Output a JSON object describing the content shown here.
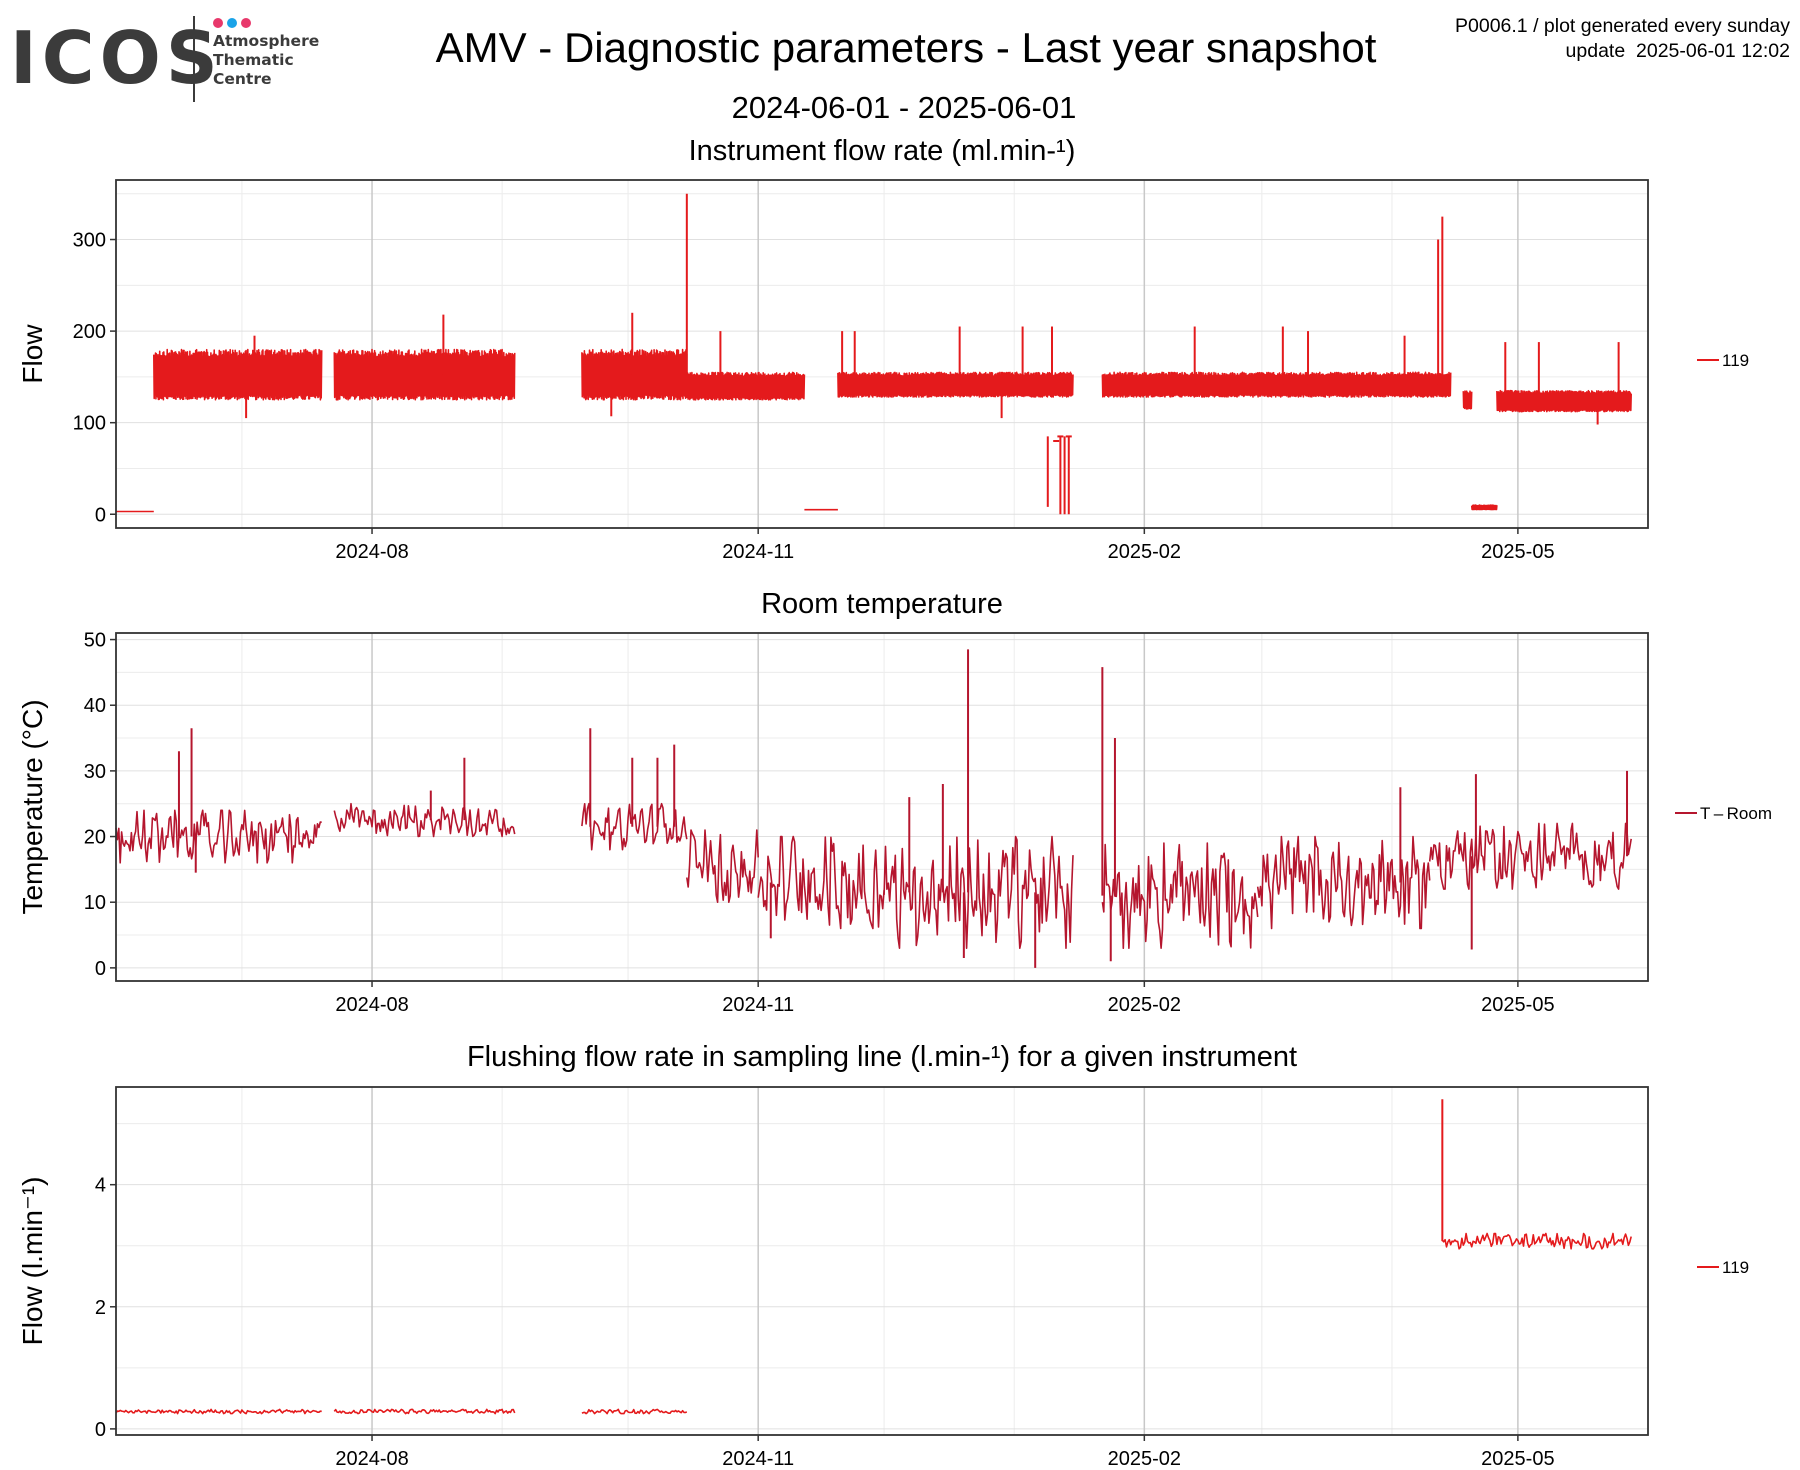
{
  "header": {
    "logo_text": "ICOS",
    "logo_subtitle": [
      "Atmosphere",
      "Thematic",
      "Centre"
    ],
    "logo_dot_colors": [
      "#e8386b",
      "#1aa3e8",
      "#e8386b"
    ],
    "title": "AMV - Diagnostic parameters - Last year snapshot",
    "date_range": "2024-06-01 - 2025-06-01",
    "meta_line1": "P0006.1 / plot generated every sunday",
    "meta_line2": "update  2025-06-01 12:02"
  },
  "colors": {
    "flow_red": "#e41a1c",
    "temp_red": "#b5162e",
    "major_grid": "#c8c8c8",
    "minor_grid": "#ececec"
  },
  "chart_data": [
    {
      "type": "line",
      "title": "Instrument flow rate (ml.min-¹)",
      "xlabel": "",
      "ylabel": "Flow",
      "xlim": [
        "2024-06-01",
        "2025-06-01"
      ],
      "ylim": [
        -15,
        365
      ],
      "x_ticks": [
        "2024-08",
        "2024-11",
        "2025-02",
        "2025-05"
      ],
      "y_ticks": [
        0,
        100,
        200,
        300
      ],
      "legend": {
        "position": "right",
        "entries": [
          "119"
        ]
      },
      "series": [
        {
          "name": "119",
          "color": "#e41a1c",
          "segments": [
            {
              "start": "2024-06-01",
              "end": "2024-06-10",
              "base": 3,
              "top": 3
            },
            {
              "start": "2024-06-10",
              "end": "2024-07-20",
              "base": 125,
              "top": 180
            },
            {
              "start": "2024-07-23",
              "end": "2024-09-04",
              "base": 125,
              "top": 180
            },
            {
              "start": "2024-09-20",
              "end": "2024-10-15",
              "base": 125,
              "top": 180
            },
            {
              "start": "2024-10-15",
              "end": "2024-11-12",
              "base": 125,
              "top": 155
            },
            {
              "start": "2024-11-12",
              "end": "2024-11-20",
              "base": 5,
              "top": 5
            },
            {
              "start": "2024-11-20",
              "end": "2025-01-15",
              "base": 128,
              "top": 155
            },
            {
              "start": "2025-01-22",
              "end": "2025-04-15",
              "base": 128,
              "top": 155
            },
            {
              "start": "2025-04-18",
              "end": "2025-04-20",
              "base": 115,
              "top": 135
            },
            {
              "start": "2025-04-20",
              "end": "2025-04-26",
              "base": 5,
              "top": 10
            },
            {
              "start": "2025-04-26",
              "end": "2025-05-28",
              "base": 112,
              "top": 135
            }
          ],
          "spikes": [
            [
              "2024-07-04",
              195
            ],
            [
              "2024-08-18",
              218
            ],
            [
              "2024-10-02",
              220
            ],
            [
              "2024-10-15",
              350
            ],
            [
              "2024-10-23",
              200
            ],
            [
              "2024-11-21",
              200
            ],
            [
              "2024-11-24",
              200
            ],
            [
              "2024-12-19",
              205
            ],
            [
              "2025-01-03",
              205
            ],
            [
              "2025-01-10",
              205
            ],
            [
              "2025-02-13",
              205
            ],
            [
              "2025-03-06",
              205
            ],
            [
              "2025-03-12",
              200
            ],
            [
              "2025-04-04",
              195
            ],
            [
              "2025-04-12",
              300
            ],
            [
              "2025-04-13",
              325
            ],
            [
              "2025-04-28",
              188
            ],
            [
              "2025-05-06",
              188
            ],
            [
              "2025-05-25",
              188
            ]
          ],
          "dips": [
            [
              "2024-07-02",
              105
            ],
            [
              "2024-09-27",
              107
            ],
            [
              "2024-12-29",
              105
            ],
            [
              "2025-05-20",
              98
            ]
          ],
          "drops": [
            [
              "2025-01-09",
              8
            ],
            [
              "2025-01-12",
              0
            ],
            [
              "2025-01-13",
              0
            ],
            [
              "2025-01-14",
              0
            ]
          ],
          "notes": [
            {
              "x": "2025-01-11",
              "y": 80
            },
            {
              "x": "2025-01-12",
              "y": 85
            },
            {
              "x": "2025-01-14",
              "y": 85
            }
          ]
        }
      ]
    },
    {
      "type": "line",
      "title": "Room temperature",
      "xlabel": "",
      "ylabel": "Temperature (°C)",
      "xlim": [
        "2024-06-01",
        "2025-06-01"
      ],
      "ylim": [
        -2,
        51
      ],
      "x_ticks": [
        "2024-08",
        "2024-11",
        "2025-02",
        "2025-05"
      ],
      "y_ticks": [
        0,
        10,
        20,
        30,
        40,
        50
      ],
      "legend": {
        "position": "right",
        "entries": [
          "T – Room"
        ]
      },
      "series": [
        {
          "name": "T – Room",
          "color": "#b5162e",
          "segments": [
            {
              "start": "2024-06-01",
              "end": "2024-07-20",
              "low": 16,
              "high": 24
            },
            {
              "start": "2024-07-23",
              "end": "2024-09-04",
              "low": 20,
              "high": 25
            },
            {
              "start": "2024-09-20",
              "end": "2024-10-15",
              "low": 18,
              "high": 25
            },
            {
              "start": "2024-10-15",
              "end": "2024-11-01",
              "low": 10,
              "high": 21
            },
            {
              "start": "2024-11-01",
              "end": "2024-12-01",
              "low": 6,
              "high": 20
            },
            {
              "start": "2024-12-01",
              "end": "2025-01-15",
              "low": 3,
              "high": 20
            },
            {
              "start": "2025-01-22",
              "end": "2025-02-28",
              "low": 3,
              "high": 19
            },
            {
              "start": "2025-02-28",
              "end": "2025-04-10",
              "low": 6,
              "high": 20
            },
            {
              "start": "2025-04-10",
              "end": "2025-05-28",
              "low": 12,
              "high": 22
            }
          ],
          "spikes": [
            [
              "2024-06-16",
              33
            ],
            [
              "2024-06-19",
              36.5
            ],
            [
              "2024-08-15",
              27
            ],
            [
              "2024-08-23",
              32
            ],
            [
              "2024-09-22",
              36.5
            ],
            [
              "2024-10-02",
              32
            ],
            [
              "2024-10-08",
              32
            ],
            [
              "2024-10-12",
              34
            ],
            [
              "2024-12-07",
              26
            ],
            [
              "2024-12-15",
              28
            ],
            [
              "2024-12-21",
              48.5
            ],
            [
              "2025-01-22",
              45.8
            ],
            [
              "2025-01-25",
              35
            ],
            [
              "2025-04-03",
              27.5
            ],
            [
              "2025-04-21",
              29.5
            ],
            [
              "2025-05-27",
              30
            ]
          ],
          "dips": [
            [
              "2024-06-20",
              14.5
            ],
            [
              "2024-11-04",
              4.5
            ],
            [
              "2024-12-20",
              1.5
            ],
            [
              "2025-01-06",
              0
            ],
            [
              "2025-01-24",
              1
            ],
            [
              "2025-04-20",
              2.8
            ]
          ]
        }
      ]
    },
    {
      "type": "line",
      "title": "Flushing flow rate in sampling line (l.min-¹) for a given instrument",
      "xlabel": "",
      "ylabel": "Flow (l.min⁻¹)",
      "xlim": [
        "2024-06-01",
        "2025-06-01"
      ],
      "ylim": [
        -0.1,
        5.6
      ],
      "x_ticks": [
        "2024-08",
        "2024-11",
        "2025-02",
        "2025-05"
      ],
      "y_ticks": [
        0,
        2,
        4
      ],
      "legend": {
        "position": "right",
        "entries": [
          "119"
        ]
      },
      "series": [
        {
          "name": "119",
          "color": "#e41a1c",
          "segments": [
            {
              "start": "2024-06-01",
              "end": "2024-07-20",
              "low": 0.25,
              "high": 0.32
            },
            {
              "start": "2024-07-23",
              "end": "2024-09-04",
              "low": 0.25,
              "high": 0.32
            },
            {
              "start": "2024-09-20",
              "end": "2024-10-15",
              "low": 0.25,
              "high": 0.32
            },
            {
              "start": "2025-04-13",
              "end": "2025-05-28",
              "low": 2.95,
              "high": 3.2
            }
          ],
          "spikes": [
            [
              "2025-04-13",
              5.4
            ]
          ]
        }
      ]
    }
  ]
}
